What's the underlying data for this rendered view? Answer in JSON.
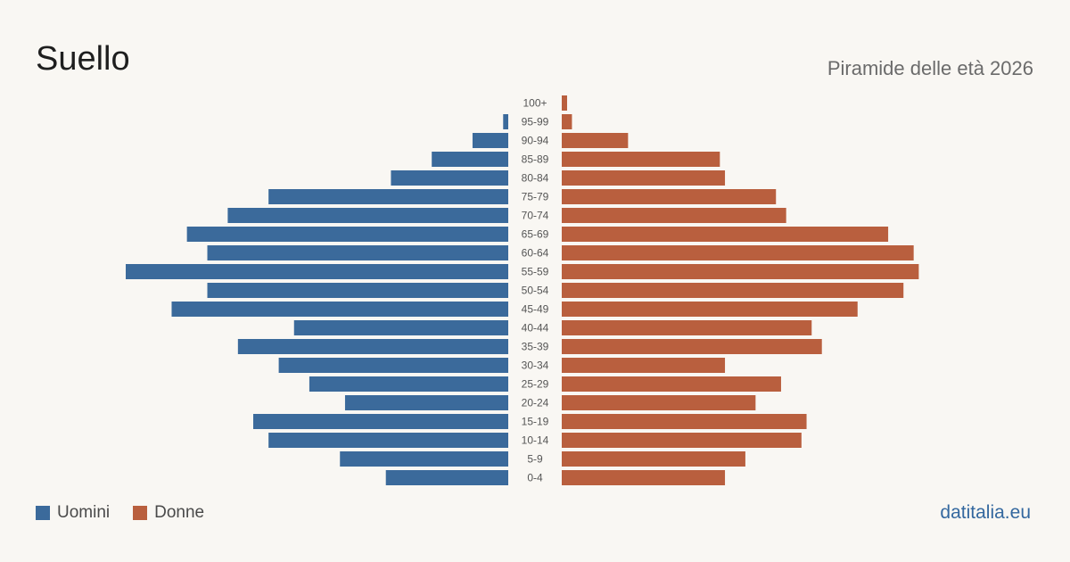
{
  "header": {
    "title": "Suello",
    "subtitle": "Piramide delle età 2026"
  },
  "legend": {
    "men_label": "Uomini",
    "women_label": "Donne"
  },
  "brand": "datitalia.eu",
  "colors": {
    "men": "#3b6a9b",
    "women": "#b95f3e",
    "background": "#f9f7f3"
  },
  "chart_data": {
    "type": "bar",
    "orientation": "horizontal-pyramid",
    "title": "Piramide delle età 2026",
    "categories": [
      "100+",
      "95-99",
      "90-94",
      "85-89",
      "80-84",
      "75-79",
      "70-74",
      "65-69",
      "60-64",
      "55-59",
      "50-54",
      "45-49",
      "40-44",
      "35-39",
      "30-34",
      "25-29",
      "20-24",
      "15-19",
      "10-14",
      "5-9",
      "0-4"
    ],
    "series": [
      {
        "name": "Uomini",
        "color": "#3b6a9b",
        "values": [
          0,
          1,
          7,
          15,
          23,
          47,
          55,
          63,
          59,
          75,
          59,
          66,
          42,
          53,
          45,
          39,
          32,
          50,
          47,
          33,
          24
        ]
      },
      {
        "name": "Donne",
        "color": "#b95f3e",
        "values": [
          1,
          2,
          13,
          31,
          32,
          42,
          44,
          64,
          69,
          70,
          67,
          58,
          49,
          51,
          32,
          43,
          38,
          48,
          47,
          36,
          32
        ]
      }
    ],
    "xlim": [
      0,
      75
    ],
    "grid": false,
    "legend_position": "bottom-left"
  }
}
